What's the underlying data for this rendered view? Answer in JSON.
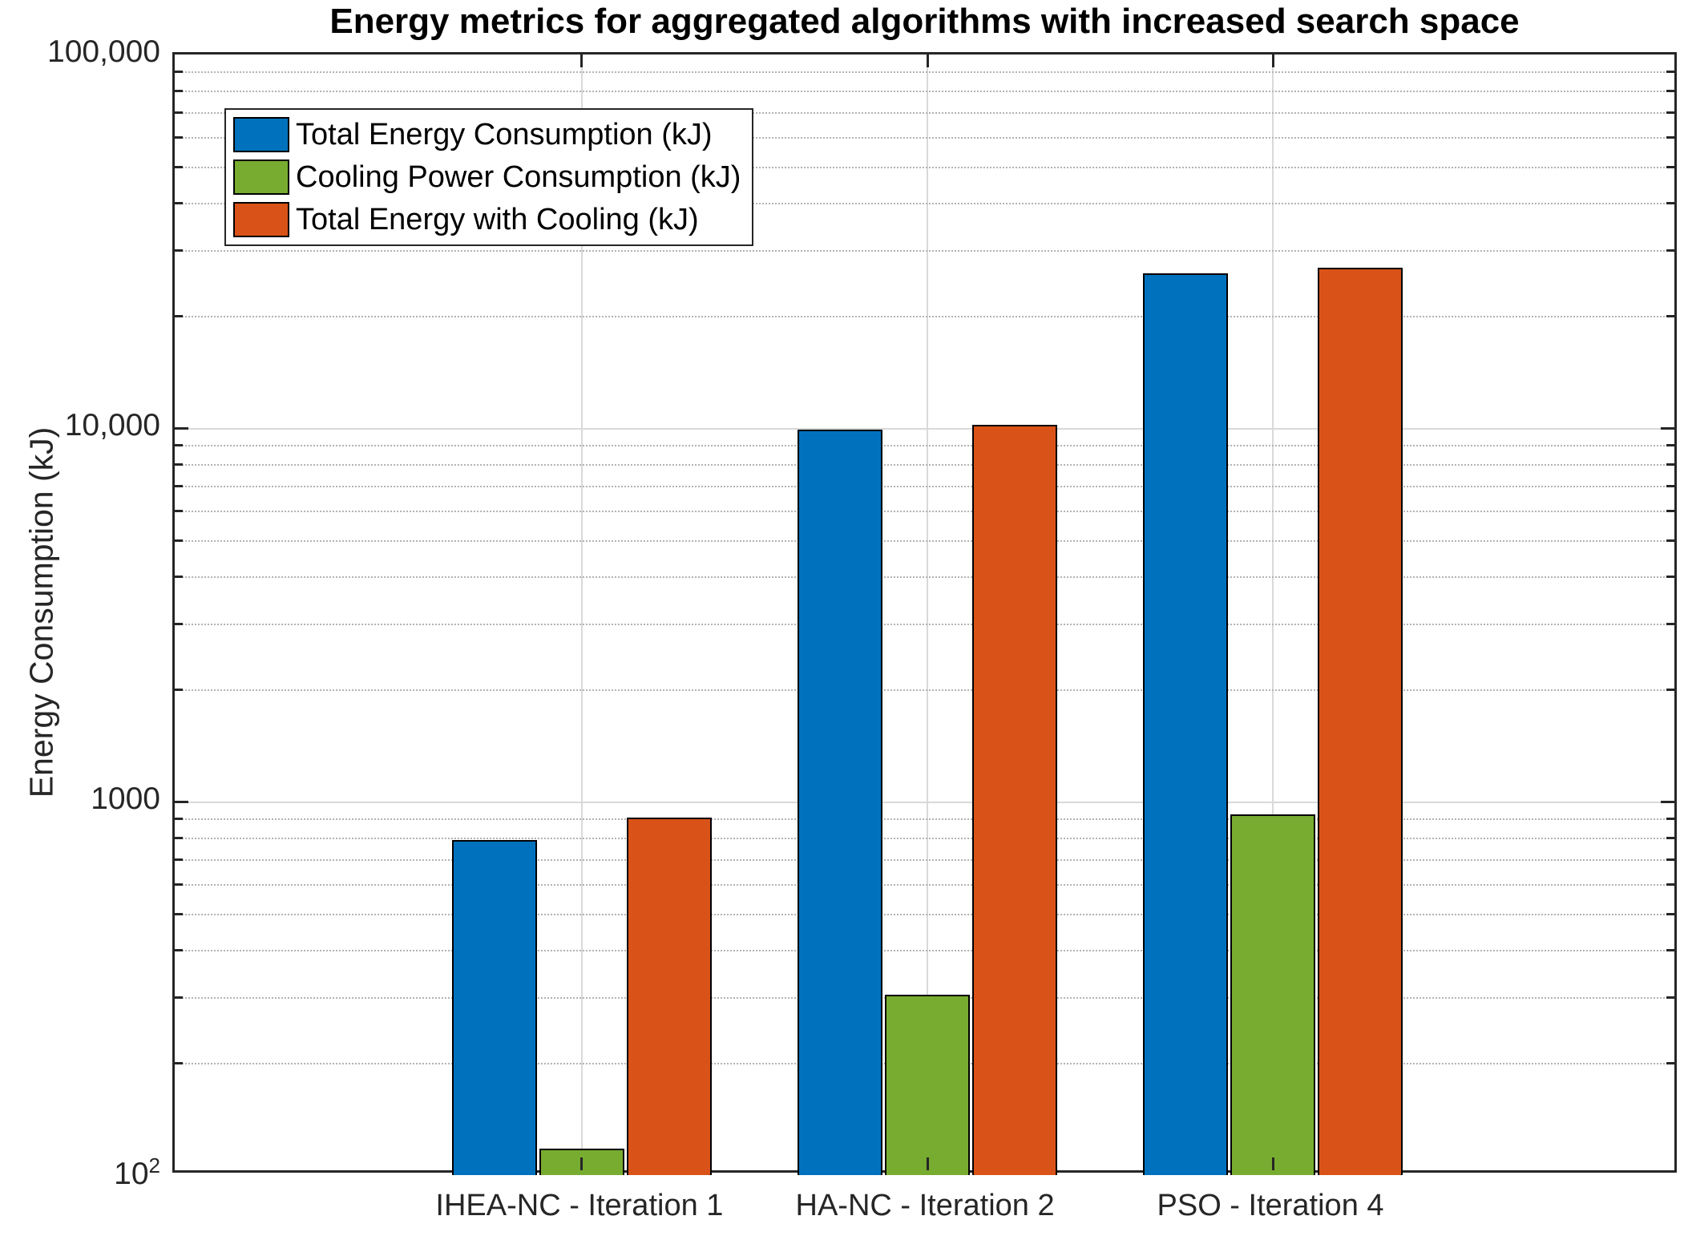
{
  "page": {
    "background": "#ffffff"
  },
  "chart_data": {
    "type": "bar",
    "title": "Energy metrics for aggregated algorithms with increased search space",
    "xlabel": "",
    "ylabel": "Energy Consumption (kJ)",
    "y_scale": "log10",
    "ylim": [
      100,
      100000
    ],
    "grid": {
      "major_horizontal": true,
      "minor_horizontal_dotted": true,
      "vertical_at_categories": true
    },
    "legend": {
      "position": "top-left",
      "bordered": true
    },
    "y_ticks": [
      {
        "value": 100,
        "label": "10",
        "sup": "2"
      },
      {
        "value": 1000,
        "label": "1000",
        "sup": ""
      },
      {
        "value": 10000,
        "label": "10,000",
        "sup": ""
      },
      {
        "value": 100000,
        "label": "100,000",
        "sup": ""
      }
    ],
    "categories": [
      "IHEA-NC - Iteration 1",
      "HA-NC - Iteration 2",
      "PSO - Iteration 4"
    ],
    "series": [
      {
        "name": "Total Energy Consumption (kJ)",
        "color": "#0072BD",
        "values": [
          790,
          9900,
          25900
        ]
      },
      {
        "name": "Cooling Power Consumption (kJ)",
        "color": "#77AC30",
        "values": [
          118,
          304,
          923
        ]
      },
      {
        "name": "Total Energy with Cooling (kJ)",
        "color": "#D95319",
        "values": [
          908,
          10200,
          26800
        ]
      }
    ],
    "bar_edge_color": "#000000",
    "axis_color": "#262626",
    "major_grid_color": "#d9d9d9",
    "minor_grid_color": "#b3b3b3"
  }
}
